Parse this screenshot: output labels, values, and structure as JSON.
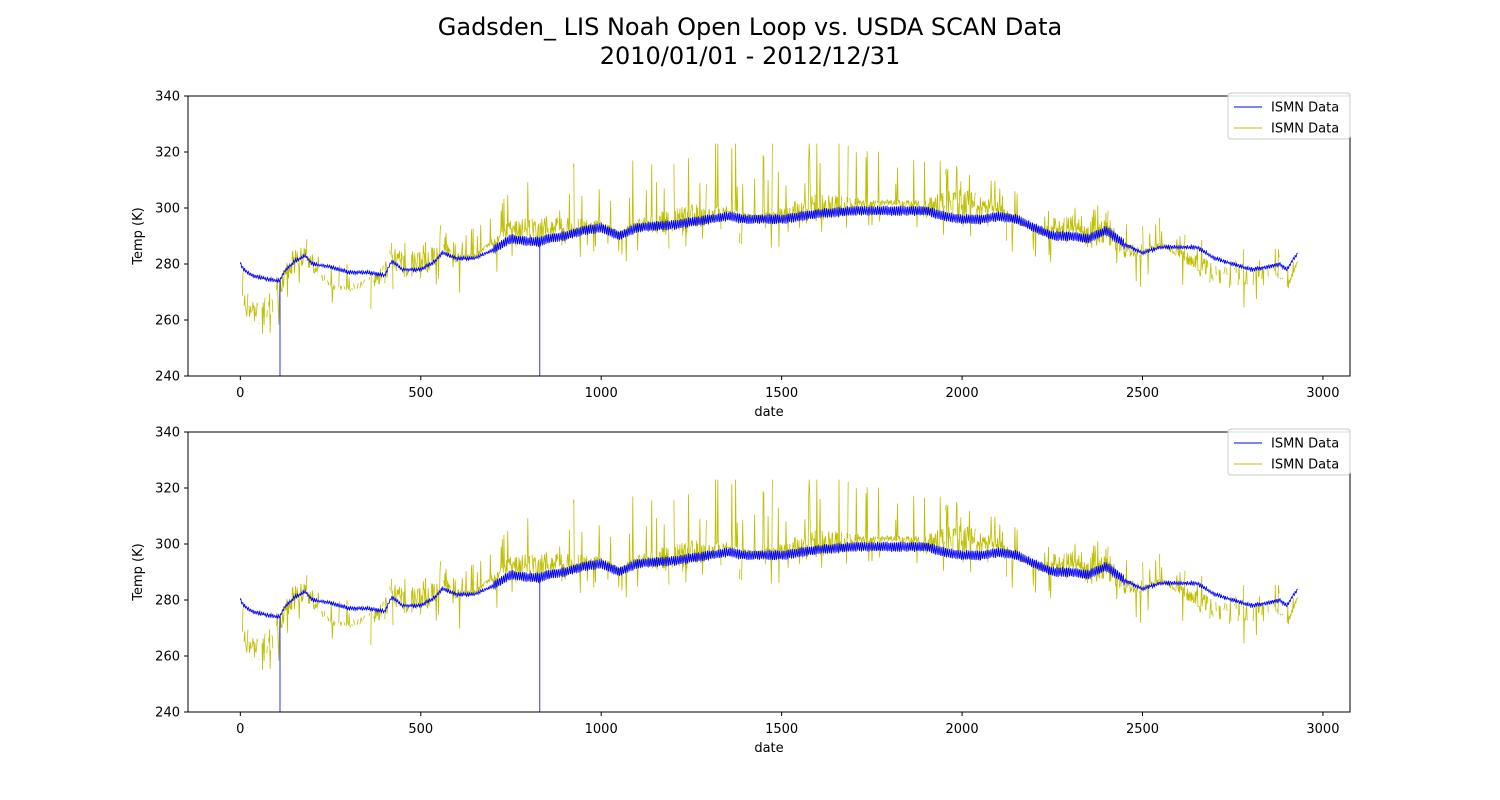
{
  "figure": {
    "title_line1": "Gadsden_ LIS Noah Open Loop vs. USDA SCAN Data",
    "title_line2": "2010/01/01 - 2012/12/31"
  },
  "colors": {
    "series_blue": "#0000ff",
    "series_yellow": "#bfbf00",
    "axes": "#000000"
  },
  "chart_data": [
    {
      "type": "line",
      "xlabel": "date",
      "ylabel": "Temp (K)",
      "xlim": [
        -145,
        3075
      ],
      "ylim": [
        240,
        340
      ],
      "xticks": [
        0,
        500,
        1000,
        1500,
        2000,
        2500,
        3000
      ],
      "yticks": [
        240,
        260,
        280,
        300,
        320,
        340
      ],
      "legend_position": "top-right",
      "series": [
        {
          "name": "ISMN Data",
          "color": "#0000ff",
          "style": "smooth with diurnal oscillation; drops to 240 near x=110 and x=830",
          "x": [
            0,
            10,
            30,
            60,
            100,
            110,
            120,
            150,
            180,
            200,
            250,
            300,
            350,
            400,
            420,
            450,
            500,
            540,
            560,
            600,
            650,
            700,
            750,
            800,
            830,
            850,
            900,
            950,
            1000,
            1050,
            1100,
            1200,
            1300,
            1350,
            1400,
            1450,
            1500,
            1600,
            1700,
            1800,
            1850,
            1900,
            1950,
            2000,
            2050,
            2100,
            2150,
            2200,
            2250,
            2300,
            2350,
            2400,
            2450,
            2500,
            2550,
            2600,
            2650,
            2700,
            2750,
            2800,
            2850,
            2880,
            2900,
            2930
          ],
          "values": [
            280,
            278,
            276,
            275,
            274,
            274,
            277,
            281,
            283,
            280,
            279,
            277,
            277,
            276,
            281,
            278,
            278,
            281,
            284,
            282,
            282,
            285,
            289,
            288,
            288,
            289,
            290,
            292,
            293,
            290,
            293,
            294,
            296,
            297,
            296,
            296,
            296,
            298,
            299,
            299,
            299,
            299,
            297,
            296,
            296,
            297,
            296,
            293,
            290,
            290,
            289,
            292,
            287,
            284,
            286,
            286,
            286,
            282,
            280,
            278,
            279,
            280,
            278,
            284
          ],
          "drop_x": [
            110,
            830
          ]
        },
        {
          "name": "ISMN Data",
          "color": "#bfbf00",
          "style": "noisy with large spikes around the blue series, intermittent gaps",
          "x": [
            0,
            10,
            30,
            60,
            100,
            110,
            120,
            150,
            180,
            200,
            250,
            300,
            350,
            400,
            420,
            450,
            500,
            540,
            560,
            600,
            650,
            700,
            750,
            800,
            830,
            850,
            900,
            950,
            1000,
            1050,
            1100,
            1200,
            1300,
            1350,
            1400,
            1450,
            1500,
            1600,
            1700,
            1800,
            1850,
            1900,
            1950,
            2000,
            2050,
            2100,
            2150,
            2200,
            2250,
            2300,
            2350,
            2400,
            2450,
            2500,
            2550,
            2600,
            2650,
            2700,
            2750,
            2800,
            2850,
            2880,
            2900,
            2930
          ],
          "values": [
            271,
            266,
            263,
            262,
            268,
            270,
            275,
            282,
            283,
            280,
            272,
            271,
            274,
            276,
            284,
            279,
            280,
            283,
            286,
            282,
            283,
            288,
            293,
            292,
            291,
            292,
            293,
            294,
            294,
            291,
            294,
            295,
            298,
            299,
            297,
            297,
            298,
            300,
            301,
            302,
            301,
            300,
            301,
            302,
            301,
            300,
            296,
            292,
            292,
            294,
            290,
            292,
            285,
            284,
            287,
            284,
            280,
            276,
            275,
            276,
            277,
            276,
            271,
            281
          ]
        }
      ]
    },
    {
      "type": "line",
      "xlabel": "date",
      "ylabel": "Temp (K)",
      "xlim": [
        -145,
        3075
      ],
      "ylim": [
        240,
        340
      ],
      "xticks": [
        0,
        500,
        1000,
        1500,
        2000,
        2500,
        3000
      ],
      "yticks": [
        240,
        260,
        280,
        300,
        320,
        340
      ],
      "legend_position": "top-right",
      "series": [
        {
          "name": "ISMN Data",
          "color": "#0000ff",
          "style": "smooth with diurnal oscillation; drops to 240 near x=110 and x=830",
          "x": [
            0,
            10,
            30,
            60,
            100,
            110,
            120,
            150,
            180,
            200,
            250,
            300,
            350,
            400,
            420,
            450,
            500,
            540,
            560,
            600,
            650,
            700,
            750,
            800,
            830,
            850,
            900,
            950,
            1000,
            1050,
            1100,
            1200,
            1300,
            1350,
            1400,
            1450,
            1500,
            1600,
            1700,
            1800,
            1850,
            1900,
            1950,
            2000,
            2050,
            2100,
            2150,
            2200,
            2250,
            2300,
            2350,
            2400,
            2450,
            2500,
            2550,
            2600,
            2650,
            2700,
            2750,
            2800,
            2850,
            2880,
            2900,
            2930
          ],
          "values": [
            280,
            278,
            276,
            275,
            274,
            274,
            277,
            281,
            283,
            280,
            279,
            277,
            277,
            276,
            281,
            278,
            278,
            281,
            284,
            282,
            282,
            285,
            289,
            288,
            288,
            289,
            290,
            292,
            293,
            290,
            293,
            294,
            296,
            297,
            296,
            296,
            296,
            298,
            299,
            299,
            299,
            299,
            297,
            296,
            296,
            297,
            296,
            293,
            290,
            290,
            289,
            292,
            287,
            284,
            286,
            286,
            286,
            282,
            280,
            278,
            279,
            280,
            278,
            284
          ],
          "drop_x": [
            110,
            830
          ]
        },
        {
          "name": "ISMN Data",
          "color": "#bfbf00",
          "style": "noisy with large spikes around the blue series, intermittent gaps",
          "x": [
            0,
            10,
            30,
            60,
            100,
            110,
            120,
            150,
            180,
            200,
            250,
            300,
            350,
            400,
            420,
            450,
            500,
            540,
            560,
            600,
            650,
            700,
            750,
            800,
            830,
            850,
            900,
            950,
            1000,
            1050,
            1100,
            1200,
            1300,
            1350,
            1400,
            1450,
            1500,
            1600,
            1700,
            1800,
            1850,
            1900,
            1950,
            2000,
            2050,
            2100,
            2150,
            2200,
            2250,
            2300,
            2350,
            2400,
            2450,
            2500,
            2550,
            2600,
            2650,
            2700,
            2750,
            2800,
            2850,
            2880,
            2900,
            2930
          ],
          "values": [
            271,
            266,
            263,
            262,
            268,
            270,
            275,
            282,
            283,
            280,
            272,
            271,
            274,
            276,
            284,
            279,
            280,
            283,
            286,
            282,
            283,
            288,
            293,
            292,
            291,
            292,
            293,
            294,
            294,
            291,
            294,
            295,
            298,
            299,
            297,
            297,
            298,
            300,
            301,
            302,
            301,
            300,
            301,
            302,
            301,
            300,
            296,
            292,
            292,
            294,
            290,
            292,
            285,
            284,
            287,
            284,
            280,
            276,
            275,
            276,
            277,
            276,
            271,
            281
          ]
        }
      ]
    }
  ]
}
